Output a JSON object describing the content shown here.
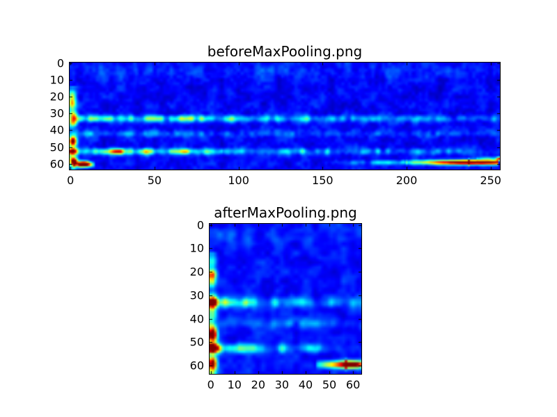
{
  "figure": {
    "background_color": "#ffffff",
    "axes_border_color": "#000000",
    "text_color": "#000000"
  },
  "chart_data": [
    {
      "type": "heatmap",
      "title": "beforeMaxPooling.png",
      "colormap": "jet",
      "cols": 256,
      "rows": 64,
      "x_range": [
        0,
        255
      ],
      "y_range": [
        0,
        63
      ],
      "x_ticks": [
        0,
        50,
        100,
        150,
        200,
        250
      ],
      "x_tick_labels": [
        "0",
        "50",
        "100",
        "150",
        "200",
        "250"
      ],
      "y_ticks": [
        0,
        10,
        20,
        30,
        40,
        50,
        60
      ],
      "y_tick_labels": [
        "0",
        "10",
        "20",
        "30",
        "40",
        "50",
        "60"
      ],
      "grid": false,
      "legend": "none",
      "seed": 11,
      "base": 0.05,
      "noise": [
        {
          "cell": 5,
          "amp": 0.09
        },
        {
          "cell": 2,
          "amp": 0.06
        }
      ],
      "features": [
        {
          "kind": "band",
          "row": 4.5,
          "sr": 3.0,
          "c0": 0,
          "c1": 255,
          "a0": 0.07,
          "a1": 0.04,
          "mod": 1
        },
        {
          "kind": "band",
          "row": 33,
          "sr": 1.5,
          "c0": 0,
          "c1": 255,
          "a0": 0.26,
          "a1": 0.13,
          "mod": 1
        },
        {
          "kind": "band",
          "row": 33,
          "sr": 1.2,
          "c0": 3,
          "c1": 150,
          "a0": 0.2,
          "a1": 0.03,
          "mod": 1
        },
        {
          "kind": "band",
          "row": 42,
          "sr": 1.4,
          "c0": 0,
          "c1": 255,
          "a0": 0.14,
          "a1": 0.08,
          "mod": 1
        },
        {
          "kind": "band",
          "row": 52.7,
          "sr": 1.4,
          "c0": 0,
          "c1": 255,
          "a0": 0.34,
          "a1": 0.12,
          "mod": 1
        },
        {
          "kind": "band",
          "row": 52.7,
          "sr": 1.1,
          "c0": 18,
          "c1": 90,
          "a0": 0.2,
          "a1": 0.1,
          "mod": 1
        },
        {
          "kind": "band",
          "row": 59.2,
          "sr": 1.0,
          "c0": 150,
          "c1": 200,
          "a0": 0.05,
          "a1": 0.22,
          "mod": 1
        },
        {
          "kind": "band",
          "row": 59.2,
          "sr": 1.0,
          "c0": 200,
          "c1": 237,
          "a0": 0.25,
          "a1": 1.05,
          "mod": 0
        },
        {
          "kind": "band",
          "row": 59.2,
          "sr": 1.0,
          "c0": 237,
          "c1": 254,
          "a0": 1.05,
          "a1": 0.8,
          "mod": 0
        },
        {
          "kind": "band",
          "row": 57,
          "sr": 0.8,
          "c0": 242,
          "c1": 255,
          "a0": 0.2,
          "a1": 0.5,
          "mod": 1
        },
        {
          "kind": "band",
          "row": 60.5,
          "sr": 1.0,
          "c0": 2,
          "c1": 14,
          "a0": 0.75,
          "a1": 0.3,
          "mod": 1
        },
        {
          "kind": "vband",
          "col": 1.2,
          "sc": 1.8,
          "r0": 14,
          "r1": 63,
          "a": 0.26,
          "mod": 1
        },
        {
          "kind": "blob",
          "row": 46.5,
          "col": 1.5,
          "sr": 2.0,
          "sc": 1.5,
          "a": 0.9
        },
        {
          "kind": "blob",
          "row": 52.5,
          "col": 2.0,
          "sr": 1.5,
          "sc": 1.7,
          "a": 0.62
        },
        {
          "kind": "blob",
          "row": 59.0,
          "col": 2.0,
          "sr": 1.6,
          "sc": 1.5,
          "a": 0.95
        },
        {
          "kind": "blob",
          "row": 60.0,
          "col": 8.0,
          "sr": 1.2,
          "sc": 2.5,
          "a": 0.7
        },
        {
          "kind": "blob",
          "row": 33.0,
          "col": 2.0,
          "sr": 2.0,
          "sc": 1.5,
          "a": 0.45
        },
        {
          "kind": "blob",
          "row": 23.0,
          "col": 1.0,
          "sr": 3.0,
          "sc": 1.2,
          "a": 0.3
        },
        {
          "kind": "blob",
          "row": 52.7,
          "col": 27,
          "sr": 1.0,
          "sc": 2.0,
          "a": 0.35
        },
        {
          "kind": "blob",
          "row": 52.7,
          "col": 68,
          "sr": 1.0,
          "sc": 2.5,
          "a": 0.3
        }
      ]
    },
    {
      "type": "heatmap",
      "title": "afterMaxPooling.png",
      "colormap": "jet",
      "cols": 64,
      "rows": 64,
      "x_range": [
        0,
        63
      ],
      "y_range": [
        0,
        63
      ],
      "x_ticks": [
        0,
        10,
        20,
        30,
        40,
        50,
        60
      ],
      "x_tick_labels": [
        "0",
        "10",
        "20",
        "30",
        "40",
        "50",
        "60"
      ],
      "y_ticks": [
        0,
        10,
        20,
        30,
        40,
        50,
        60
      ],
      "y_tick_labels": [
        "0",
        "10",
        "20",
        "30",
        "40",
        "50",
        "60"
      ],
      "grid": false,
      "legend": "none",
      "seed": 29,
      "base": 0.06,
      "noise": [
        {
          "cell": 4,
          "amp": 0.09
        },
        {
          "cell": 2,
          "amp": 0.06
        }
      ],
      "features": [
        {
          "kind": "band",
          "row": 4.5,
          "sr": 3.0,
          "c0": 0,
          "c1": 63,
          "a0": 0.06,
          "a1": 0.04,
          "mod": 1
        },
        {
          "kind": "band",
          "row": 33,
          "sr": 1.5,
          "c0": 0,
          "c1": 63,
          "a0": 0.28,
          "a1": 0.12,
          "mod": 1
        },
        {
          "kind": "band",
          "row": 33,
          "sr": 1.2,
          "c0": 0,
          "c1": 15,
          "a0": 0.25,
          "a1": 0.05,
          "mod": 1
        },
        {
          "kind": "band",
          "row": 42,
          "sr": 1.4,
          "c0": 0,
          "c1": 63,
          "a0": 0.16,
          "a1": 0.08,
          "mod": 1
        },
        {
          "kind": "band",
          "row": 52.6,
          "sr": 1.4,
          "c0": 0,
          "c1": 63,
          "a0": 0.34,
          "a1": 0.12,
          "mod": 1
        },
        {
          "kind": "band",
          "row": 52.6,
          "sr": 1.1,
          "c0": 0,
          "c1": 10,
          "a0": 0.35,
          "a1": 0.1,
          "mod": 1
        },
        {
          "kind": "band",
          "row": 59.5,
          "sr": 1.1,
          "c0": 45,
          "c1": 57,
          "a0": 0.2,
          "a1": 0.95,
          "mod": 0
        },
        {
          "kind": "band",
          "row": 59.5,
          "sr": 1.1,
          "c0": 57,
          "c1": 63,
          "a0": 0.95,
          "a1": 0.6,
          "mod": 0
        },
        {
          "kind": "vband",
          "col": 0.6,
          "sc": 1.4,
          "r0": 12,
          "r1": 63,
          "a": 0.3,
          "mod": 1
        },
        {
          "kind": "blob",
          "row": 46,
          "col": 0.8,
          "sr": 1.8,
          "sc": 1.2,
          "a": 0.95
        },
        {
          "kind": "blob",
          "row": 52.5,
          "col": 1.0,
          "sr": 1.4,
          "sc": 1.3,
          "a": 0.65
        },
        {
          "kind": "blob",
          "row": 59.5,
          "col": 0.8,
          "sr": 1.6,
          "sc": 1.2,
          "a": 0.95
        },
        {
          "kind": "blob",
          "row": 33,
          "col": 1.0,
          "sr": 1.8,
          "sc": 1.2,
          "a": 0.5
        },
        {
          "kind": "blob",
          "row": 23,
          "col": 0.5,
          "sr": 2.5,
          "sc": 1.0,
          "a": 0.35
        },
        {
          "kind": "blob",
          "row": 59.5,
          "col": 60,
          "sr": 0.9,
          "sc": 2.0,
          "a": 0.45
        }
      ]
    }
  ]
}
